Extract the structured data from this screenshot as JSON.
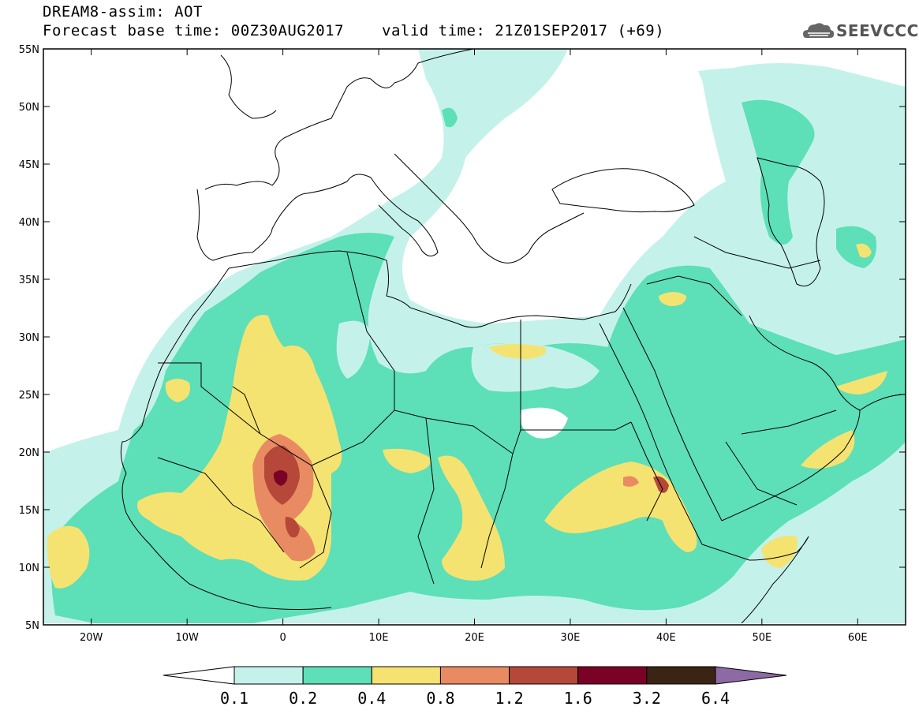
{
  "header": {
    "title": "DREAM8-assim: AOT",
    "base_time": "Forecast base time: 00Z30AUG2017",
    "valid_time": "valid time: 21Z01SEP2017 (+69)",
    "logo": "SEEVCCC"
  },
  "map": {
    "lon_range": [
      -25,
      65
    ],
    "lat_range": [
      5,
      55
    ],
    "lon_ticks": [
      {
        "value": -20,
        "label": "20W"
      },
      {
        "value": -10,
        "label": "10W"
      },
      {
        "value": 0,
        "label": "0"
      },
      {
        "value": 10,
        "label": "10E"
      },
      {
        "value": 20,
        "label": "20E"
      },
      {
        "value": 30,
        "label": "30E"
      },
      {
        "value": 40,
        "label": "40E"
      },
      {
        "value": 50,
        "label": "50E"
      },
      {
        "value": 60,
        "label": "60E"
      }
    ],
    "lat_ticks": [
      {
        "value": 55,
        "label": "55N"
      },
      {
        "value": 50,
        "label": "50N"
      },
      {
        "value": 45,
        "label": "45N"
      },
      {
        "value": 40,
        "label": "40N"
      },
      {
        "value": 35,
        "label": "35N"
      },
      {
        "value": 30,
        "label": "30N"
      },
      {
        "value": 25,
        "label": "25N"
      },
      {
        "value": 20,
        "label": "20N"
      },
      {
        "value": 15,
        "label": "15N"
      },
      {
        "value": 10,
        "label": "10N"
      },
      {
        "value": 5,
        "label": "5N"
      }
    ]
  },
  "colorbar": {
    "labels": [
      "0.1",
      "0.2",
      "0.4",
      "0.8",
      "1.2",
      "1.6",
      "3.2",
      "6.4"
    ],
    "colors": [
      "#ffffff",
      "#c4f2ea",
      "#5ddfb8",
      "#f5e371",
      "#e98b62",
      "#b54838",
      "#7b0227",
      "#3b2413",
      "#8d6aa3"
    ]
  }
}
